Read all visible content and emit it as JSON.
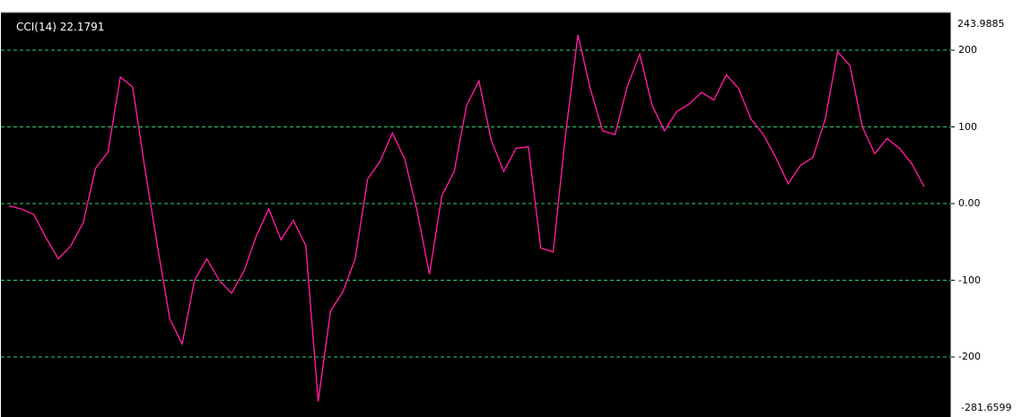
{
  "indicator": {
    "label": "CCI(14) 22.1791"
  },
  "colors": {
    "background": "#000000",
    "line": "#ff1a9c",
    "levels": "#33cc77",
    "axis_panel": "#ffffff",
    "axis_text": "#000000"
  },
  "axis": {
    "max_label": "243.9885",
    "min_label": "-281.6599",
    "ticks": [
      {
        "value": 200,
        "label": "200"
      },
      {
        "value": 100,
        "label": "100"
      },
      {
        "value": 0,
        "label": "0.00"
      },
      {
        "value": -100,
        "label": "-100"
      },
      {
        "value": -200,
        "label": "-200"
      }
    ]
  },
  "chart_data": {
    "type": "line",
    "series": [
      {
        "values": [
          -3,
          -7,
          -14,
          -45,
          -72,
          -55,
          -25,
          46,
          67,
          165,
          152,
          45,
          -55,
          -150,
          -183,
          -100,
          -72,
          -100,
          -117,
          -88,
          -42,
          -7,
          -47,
          -22,
          -55,
          -258,
          -140,
          -115,
          -72,
          32,
          55,
          92,
          58,
          -10,
          -92,
          10,
          42,
          128,
          160,
          82,
          42,
          72,
          74,
          -58,
          -63,
          90,
          220,
          150,
          95,
          90,
          153,
          195,
          128,
          95,
          120,
          130,
          145,
          135,
          168,
          150,
          110,
          90,
          60,
          26,
          50,
          60,
          110,
          198,
          180,
          100,
          65,
          85,
          72,
          52,
          22
        ]
      }
    ],
    "levels": [
      200,
      100,
      0,
      -100,
      -200
    ],
    "ylim": [
      -281.6599,
      243.9885
    ]
  }
}
